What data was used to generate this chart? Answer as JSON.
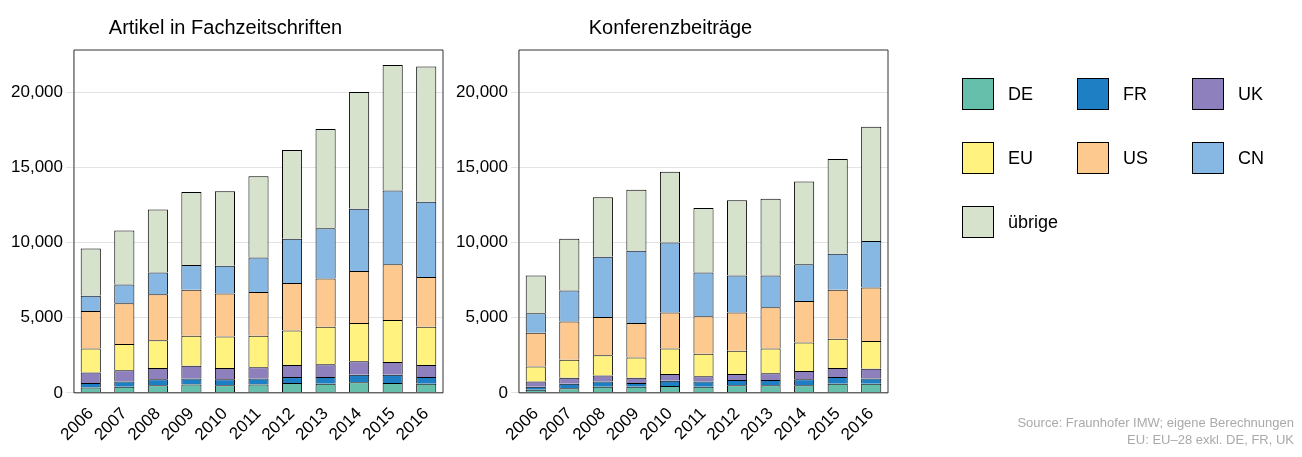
{
  "chart_data": [
    {
      "type": "bar",
      "title": "Artikel in Fachzeitschriften",
      "stacked": true,
      "grid": "y",
      "categories": [
        "2006",
        "2007",
        "2008",
        "2009",
        "2010",
        "2011",
        "2012",
        "2013",
        "2014",
        "2015",
        "2016"
      ],
      "ylim": [
        0,
        22800
      ],
      "yticks": [
        0,
        {
          "value": 5000,
          "label": "5,000"
        },
        {
          "value": 10000,
          "label": "10,000"
        },
        {
          "value": 15000,
          "label": "15,000"
        },
        {
          "value": 20000,
          "label": "20,000"
        }
      ],
      "series": [
        {
          "color": "#66bfab",
          "values": [
            350,
            400,
            500,
            550,
            500,
            550,
            650,
            600,
            700,
            650,
            600
          ]
        },
        {
          "color": "#1f7fc4",
          "values": [
            300,
            350,
            400,
            400,
            400,
            400,
            400,
            450,
            500,
            550,
            450
          ]
        },
        {
          "color": "#8e7fbd",
          "values": [
            700,
            750,
            750,
            850,
            750,
            750,
            800,
            850,
            900,
            850,
            800
          ]
        },
        {
          "color": "#fff27f",
          "values": [
            1600,
            1750,
            1850,
            2000,
            2100,
            2100,
            2300,
            2500,
            2550,
            2800,
            2550
          ]
        },
        {
          "color": "#fdc98e",
          "values": [
            2500,
            2700,
            3050,
            3050,
            2850,
            2900,
            3150,
            3200,
            3450,
            3700,
            3300
          ]
        },
        {
          "color": "#86b8e3",
          "values": [
            1000,
            1250,
            1450,
            1650,
            1850,
            2300,
            2950,
            3350,
            4150,
            4900,
            5000
          ]
        },
        {
          "color": "#d6e2cb",
          "values": [
            3150,
            3600,
            4200,
            4850,
            4950,
            5400,
            5900,
            6600,
            7750,
            8350,
            9000
          ]
        }
      ]
    },
    {
      "type": "bar",
      "title": "Konferenzbeiträge",
      "stacked": true,
      "grid": "y",
      "legend": "right",
      "categories": [
        "2006",
        "2007",
        "2008",
        "2009",
        "2010",
        "2011",
        "2012",
        "2013",
        "2014",
        "2015",
        "2016"
      ],
      "ylim": [
        0,
        22800
      ],
      "yticks": [
        0,
        {
          "value": 5000,
          "label": "5,000"
        },
        {
          "value": 10000,
          "label": "10,000"
        },
        {
          "value": 15000,
          "label": "15,000"
        },
        {
          "value": 20000,
          "label": "20,000"
        }
      ],
      "annotations": [
        "Source: Fraunhofer IMW; eigene Berechnungen",
        "EU: EU–28 exkl. DE, FR, UK"
      ],
      "series": [
        {
          "name": "DE",
          "color": "#66bfab",
          "values": [
            200,
            300,
            400,
            400,
            450,
            400,
            500,
            500,
            500,
            600,
            600
          ]
        },
        {
          "name": "FR",
          "color": "#1f7fc4",
          "values": [
            200,
            300,
            350,
            250,
            350,
            350,
            350,
            350,
            400,
            450,
            350
          ]
        },
        {
          "name": "UK",
          "color": "#8e7fbd",
          "values": [
            350,
            400,
            400,
            350,
            450,
            350,
            400,
            450,
            550,
            600,
            650
          ]
        },
        {
          "name": "EU",
          "color": "#fff27f",
          "values": [
            1000,
            1200,
            1350,
            1350,
            1700,
            1500,
            1550,
            1650,
            1900,
            1950,
            1850
          ]
        },
        {
          "name": "US",
          "color": "#fdc98e",
          "values": [
            2250,
            2550,
            2550,
            2300,
            2400,
            2500,
            2550,
            2750,
            2750,
            3250,
            3550
          ]
        },
        {
          "name": "CN",
          "color": "#86b8e3",
          "values": [
            1300,
            2050,
            4000,
            4800,
            4650,
            2900,
            2450,
            2100,
            2450,
            2400,
            3100
          ]
        },
        {
          "name": "übrige",
          "color": "#d6e2cb",
          "values": [
            2500,
            3450,
            3950,
            4050,
            4700,
            4300,
            5000,
            5100,
            5500,
            6300,
            7600
          ]
        }
      ]
    }
  ]
}
